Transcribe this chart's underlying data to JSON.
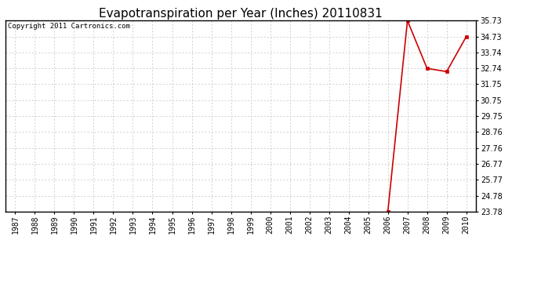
{
  "title": "Evapotranspiration per Year (Inches) 20110831",
  "copyright_text": "Copyright 2011 Cartronics.com",
  "x_years": [
    1987,
    1988,
    1989,
    1990,
    1991,
    1992,
    1993,
    1994,
    1995,
    1996,
    1997,
    1998,
    1999,
    2000,
    2001,
    2002,
    2003,
    2004,
    2005,
    2006,
    2007,
    2008,
    2009,
    2010
  ],
  "y_values": [
    null,
    null,
    null,
    null,
    null,
    null,
    null,
    null,
    null,
    null,
    null,
    null,
    null,
    null,
    null,
    null,
    null,
    null,
    null,
    23.78,
    35.73,
    32.74,
    32.54,
    34.73
  ],
  "yticks": [
    23.78,
    24.78,
    25.77,
    26.77,
    27.76,
    28.76,
    29.75,
    30.75,
    31.75,
    32.74,
    33.74,
    34.73,
    35.73
  ],
  "ymin": 23.78,
  "ymax": 35.73,
  "line_color": "#cc0000",
  "marker_color": "#cc0000",
  "bg_color": "#ffffff",
  "plot_bg_color": "#ffffff",
  "grid_color": "#c0c0c0",
  "title_fontsize": 11,
  "tick_label_fontsize": 7,
  "copyright_fontsize": 6.5
}
